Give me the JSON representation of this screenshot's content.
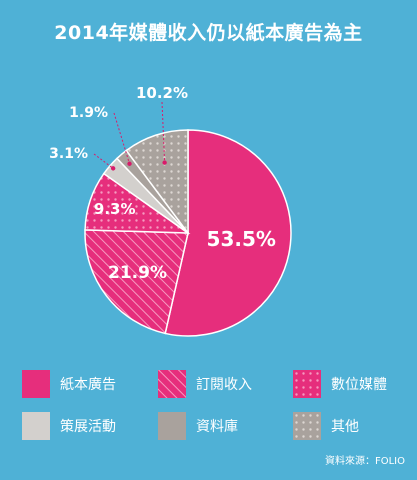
{
  "chart_data": {
    "type": "pie",
    "title": "2014年媒體收入仍以紙本廣告為主",
    "slices": [
      {
        "name": "紙本廣告",
        "value": 53.5,
        "label": "53.5%",
        "color": "#e62e7c",
        "pattern": "solid"
      },
      {
        "name": "訂閱收入",
        "value": 21.9,
        "label": "21.9%",
        "color": "#e62e7c",
        "pattern": "hatch"
      },
      {
        "name": "數位媒體",
        "value": 9.3,
        "label": "9.3%",
        "color": "#e62e7c",
        "pattern": "dots"
      },
      {
        "name": "策展活動",
        "value": 3.1,
        "label": "3.1%",
        "color": "#d3d0cd",
        "pattern": "solid"
      },
      {
        "name": "資料庫",
        "value": 1.9,
        "label": "1.9%",
        "color": "#a9a29d",
        "pattern": "solid"
      },
      {
        "name": "其他",
        "value": 10.2,
        "label": "10.2%",
        "color": "#a9a29d",
        "pattern": "dots"
      }
    ],
    "legend_placement": "bottom"
  },
  "source": "資料來源：FOLIO"
}
